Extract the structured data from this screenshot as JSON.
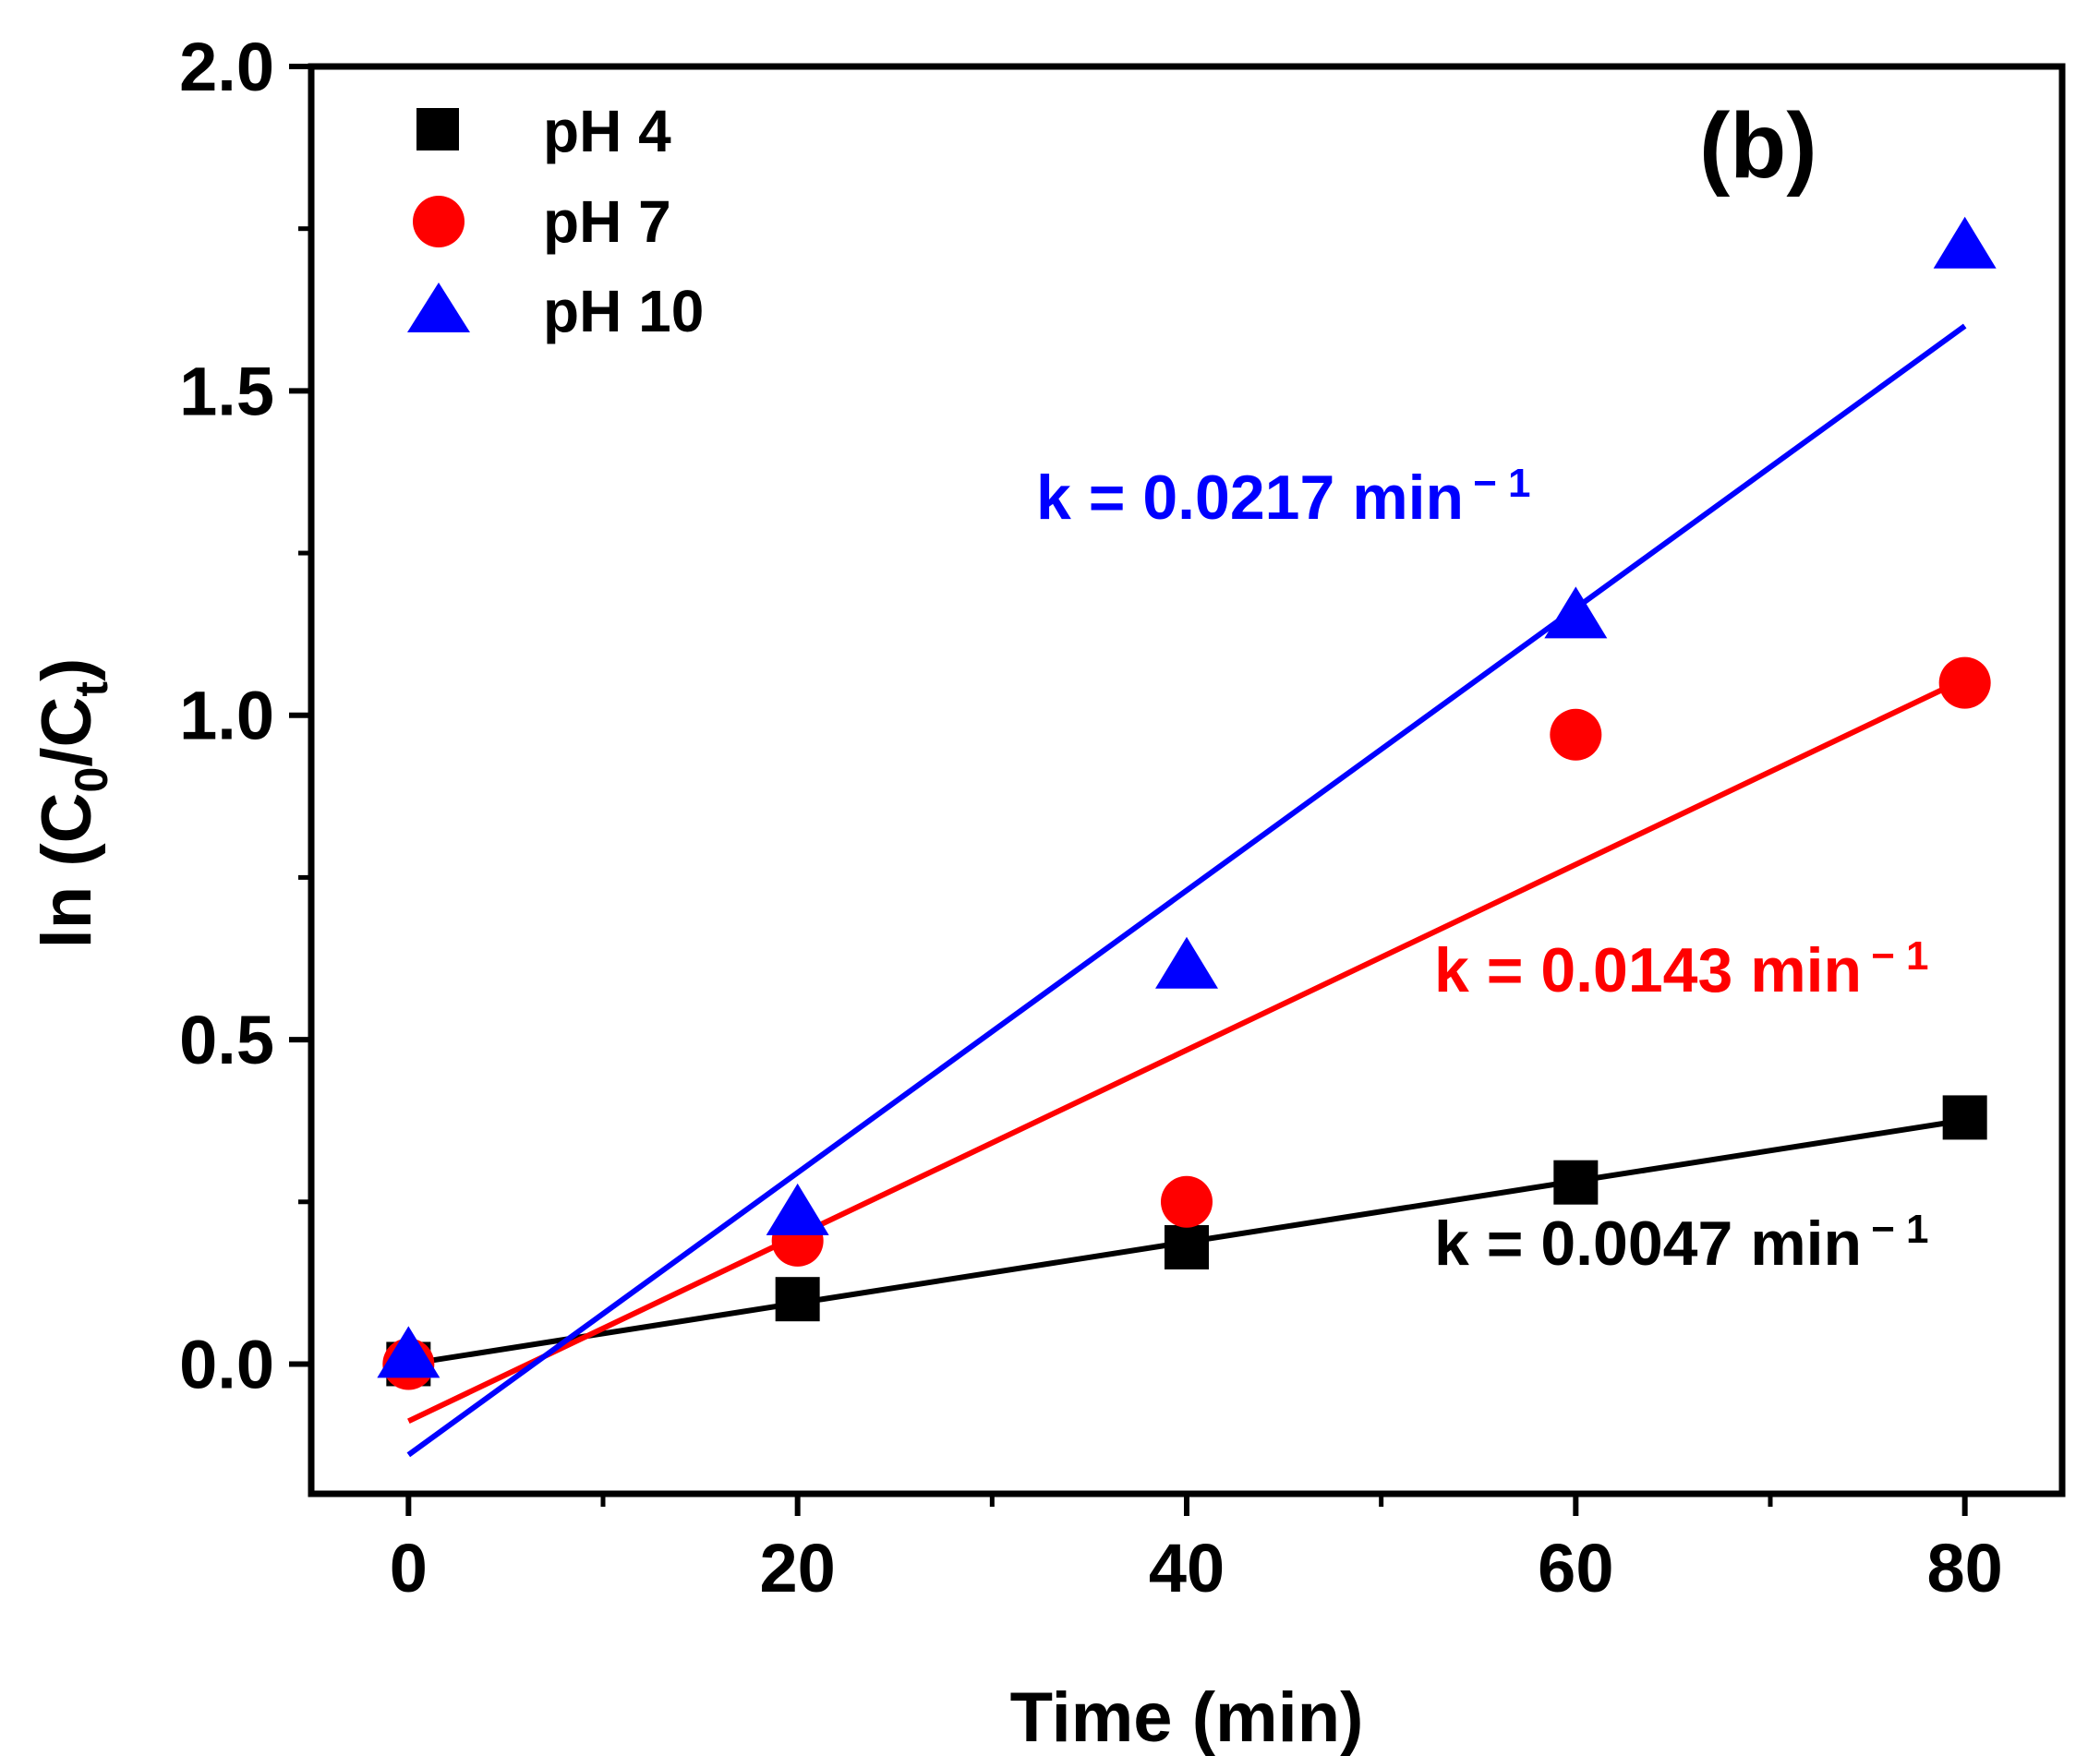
{
  "chart_data": {
    "type": "scatter",
    "panel_label": "(b)",
    "xlabel": "Time (min)",
    "ylabel": {
      "prefix": "ln (C",
      "sub0": "0",
      "mid": "/C",
      "subt": "t",
      "suffix": ")"
    },
    "xlim": [
      -5,
      85
    ],
    "ylim": [
      -0.2,
      2.0
    ],
    "x_ticks": [
      0,
      20,
      40,
      60,
      80
    ],
    "x_tick_labels": [
      "0",
      "20",
      "40",
      "60",
      "80"
    ],
    "y_ticks": [
      0.0,
      0.5,
      1.0,
      1.5,
      2.0
    ],
    "y_tick_labels": [
      "0.0",
      "0.5",
      "1.0",
      "1.5",
      "2.0"
    ],
    "grid": false,
    "legend_position": "top-left",
    "series": [
      {
        "name": "pH 4",
        "marker": "square",
        "color": "#000000",
        "x": [
          0,
          20,
          40,
          60,
          80
        ],
        "y": [
          0.0,
          0.1,
          0.18,
          0.28,
          0.38
        ],
        "fit": {
          "x": [
            0,
            80
          ],
          "y": [
            0.0,
            0.376
          ]
        },
        "k_label": {
          "text": "k = 0.0047 min",
          "sup": "− 1"
        }
      },
      {
        "name": "pH 7",
        "marker": "circle",
        "color": "#ff0000",
        "x": [
          0,
          20,
          40,
          60,
          80
        ],
        "y": [
          0.0,
          0.19,
          0.25,
          0.97,
          1.05
        ],
        "fit": {
          "x": [
            0,
            80
          ],
          "y": [
            -0.088,
            1.056
          ]
        },
        "k_label": {
          "text": "k = 0.0143 min",
          "sup": "− 1"
        }
      },
      {
        "name": "pH 10",
        "marker": "triangle",
        "color": "#0000ff",
        "x": [
          0,
          20,
          40,
          60,
          80
        ],
        "y": [
          0.01,
          0.23,
          0.61,
          1.15,
          1.72
        ],
        "fit": {
          "x": [
            0,
            80
          ],
          "y": [
            -0.14,
            1.6
          ]
        },
        "k_label": {
          "text": "k = 0.0217 min",
          "sup": "− 1"
        }
      }
    ]
  }
}
